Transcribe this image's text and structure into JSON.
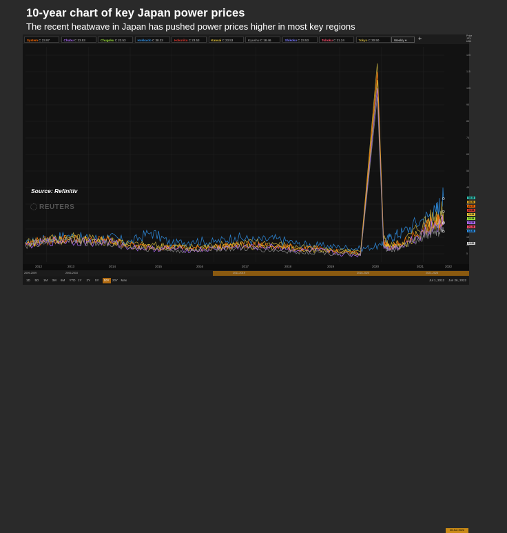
{
  "header": {
    "title": "10-year chart of key Japan power prices",
    "subtitle": "The recent heatwave in Japan has pushed power prices higher in most key regions"
  },
  "legend": [
    {
      "name": "System",
      "value": "C 23.97",
      "color": "#ff6a00"
    },
    {
      "name": "Chubu",
      "value": "C 23.53",
      "color": "#b06bff"
    },
    {
      "name": "Chugoku",
      "value": "C 23.53",
      "color": "#9be03a"
    },
    {
      "name": "Hokkaido",
      "value": "C 38.33",
      "color": "#2f8de0"
    },
    {
      "name": "Hokuriku",
      "value": "C 23.53",
      "color": "#e0382f"
    },
    {
      "name": "Kansai",
      "value": "C 23.53",
      "color": "#e8c73a"
    },
    {
      "name": "Kyushu",
      "value": "C 18.46",
      "color": "#8a8a8a"
    },
    {
      "name": "Shikoku",
      "value": "C 23.53",
      "color": "#7a7aff"
    },
    {
      "name": "Tohoku",
      "value": "C 21.24",
      "color": "#ff4a6a"
    },
    {
      "name": "Tokyo",
      "value": "C 30.50",
      "color": "#c8b040"
    }
  ],
  "controls": {
    "frequency": "Weekly",
    "add_symbol": "+",
    "axis_header": [
      "Price",
      "JPY",
      "kWh"
    ]
  },
  "annotations": {
    "source": "Source: Refinitiv",
    "logo": "REUTERS"
  },
  "timeline": {
    "years": [
      "2012",
      "2013",
      "2014",
      "2015",
      "2016",
      "2017",
      "2018",
      "2019",
      "2020",
      "2021",
      "2022"
    ],
    "navigator": [
      "2009-2009",
      "2006-2010",
      "2011-2019",
      "2016-2020",
      "2021-2025"
    ],
    "date_badge": "26 Jun 2022"
  },
  "range_buttons": [
    "1D",
    "5D",
    "1M",
    "3M",
    "6M",
    "YTD",
    "1Y",
    "2Y",
    "5Y",
    "10Y",
    "20Y",
    "Max"
  ],
  "active_range": "10Y",
  "date_range": {
    "start": "Jul 1, 2012",
    "end": "Jun 26, 2022"
  },
  "chart_data": {
    "type": "line",
    "title": "10-year chart of key Japan power prices",
    "subtitle": "The recent heatwave in Japan has pushed power prices higher in most key regions",
    "ylabel": "Price JPY/kWh",
    "ylim": [
      0,
      130
    ],
    "yticks": [
      5,
      10,
      15,
      20,
      25,
      35,
      45,
      55,
      65,
      75,
      85,
      95,
      105,
      115,
      125
    ],
    "xlim": [
      2012.5,
      2022.5
    ],
    "grid": true,
    "series": [
      {
        "name": "Hokkaido",
        "color": "#2f8de0",
        "x": [
          2012.5,
          2013.0,
          2013.5,
          2014.0,
          2014.5,
          2015.0,
          2015.5,
          2016.0,
          2016.5,
          2017.0,
          2017.5,
          2018.0,
          2018.5,
          2019.0,
          2019.5,
          2020.0,
          2020.5,
          2021.0,
          2021.2,
          2021.5,
          2022.0,
          2022.3,
          2022.48
        ],
        "y": [
          11,
          14,
          16,
          14,
          15,
          12,
          18,
          11,
          13,
          12,
          15,
          13,
          14,
          11,
          10,
          9,
          8,
          10,
          15,
          18,
          26,
          30,
          38.33
        ]
      },
      {
        "name": "Tokyo",
        "color": "#c8b040",
        "x": [
          2012.5,
          2013.0,
          2013.5,
          2014.0,
          2014.5,
          2015.0,
          2015.5,
          2016.0,
          2016.5,
          2017.0,
          2017.5,
          2018.0,
          2018.5,
          2019.0,
          2019.5,
          2020.0,
          2020.5,
          2020.9,
          2021.05,
          2021.2,
          2021.5,
          2022.0,
          2022.3,
          2022.48
        ],
        "y": [
          12,
          14,
          15,
          14,
          14,
          11,
          10,
          10,
          9,
          10,
          11,
          12,
          11,
          9,
          8,
          7,
          6,
          120,
          14,
          10,
          12,
          24,
          28,
          30.5
        ]
      },
      {
        "name": "System",
        "color": "#ff6a00",
        "x": [
          2012.5,
          2013.0,
          2013.5,
          2014.0,
          2014.5,
          2015.0,
          2015.5,
          2016.0,
          2016.5,
          2017.0,
          2017.5,
          2018.0,
          2018.5,
          2019.0,
          2019.5,
          2020.0,
          2020.5,
          2020.9,
          2021.05,
          2021.2,
          2021.5,
          2022.0,
          2022.3,
          2022.48
        ],
        "y": [
          11,
          13,
          14,
          13,
          13,
          10,
          9,
          9,
          8,
          9,
          10,
          10,
          10,
          8,
          8,
          6,
          5,
          115,
          12,
          9,
          11,
          20,
          24,
          23.97
        ]
      },
      {
        "name": "Kansai",
        "color": "#e8c73a",
        "x": [
          2012.5,
          2013.0,
          2013.5,
          2014.0,
          2014.5,
          2015.0,
          2015.5,
          2016.0,
          2016.5,
          2017.0,
          2017.5,
          2018.0,
          2018.5,
          2019.0,
          2019.5,
          2020.0,
          2020.5,
          2020.9,
          2021.05,
          2021.2,
          2021.5,
          2022.0,
          2022.3,
          2022.48
        ],
        "y": [
          11,
          13,
          14,
          13,
          13,
          10,
          9,
          9,
          8,
          9,
          10,
          9,
          9,
          8,
          7,
          6,
          5,
          110,
          11,
          9,
          10,
          19,
          23,
          23.53
        ]
      },
      {
        "name": "Chubu",
        "color": "#b06bff",
        "x": [
          2012.5,
          2013.0,
          2013.5,
          2014.0,
          2014.5,
          2015.0,
          2015.5,
          2016.0,
          2016.5,
          2017.0,
          2017.5,
          2018.0,
          2018.5,
          2019.0,
          2019.5,
          2020.0,
          2020.5,
          2020.9,
          2021.05,
          2021.2,
          2021.5,
          2022.0,
          2022.3,
          2022.48
        ],
        "y": [
          10,
          12,
          13,
          12,
          12,
          9,
          8,
          8,
          7,
          8,
          9,
          9,
          9,
          7,
          7,
          5,
          4,
          105,
          10,
          8,
          10,
          18,
          22,
          23.53
        ]
      },
      {
        "name": "Kyushu",
        "color": "#8a8a8a",
        "x": [
          2012.5,
          2013.0,
          2013.5,
          2014.0,
          2014.5,
          2015.0,
          2015.5,
          2016.0,
          2016.5,
          2017.0,
          2017.5,
          2018.0,
          2018.5,
          2019.0,
          2019.5,
          2020.0,
          2020.5,
          2020.9,
          2021.05,
          2021.2,
          2021.5,
          2022.0,
          2022.3,
          2022.48
        ],
        "y": [
          10,
          12,
          13,
          12,
          11,
          9,
          8,
          7,
          7,
          8,
          8,
          8,
          7,
          6,
          6,
          5,
          4,
          100,
          9,
          7,
          9,
          16,
          19,
          18.46
        ]
      }
    ],
    "last_values": [
      {
        "label": "38.33",
        "value": 38.33,
        "color": "#2fbfb0"
      },
      {
        "label": "30.50",
        "value": 30.5,
        "color": "#d8a020"
      },
      {
        "label": "23.97",
        "value": 23.97,
        "color": "#ff6a00"
      },
      {
        "label": "23.53",
        "value": 23.53,
        "color": "#e0382f"
      },
      {
        "label": "23.53",
        "value": 23.53,
        "color": "#e8c73a"
      },
      {
        "label": "23.53",
        "value": 23.53,
        "color": "#9be03a"
      },
      {
        "label": "23.53",
        "value": 23.53,
        "color": "#b06bff"
      },
      {
        "label": "21.24",
        "value": 21.24,
        "color": "#ff4a6a"
      },
      {
        "label": "18.46",
        "value": 18.46,
        "color": "#2f8de0"
      },
      {
        "label": "10.00",
        "value": 10,
        "color": "#cccccc"
      }
    ]
  }
}
